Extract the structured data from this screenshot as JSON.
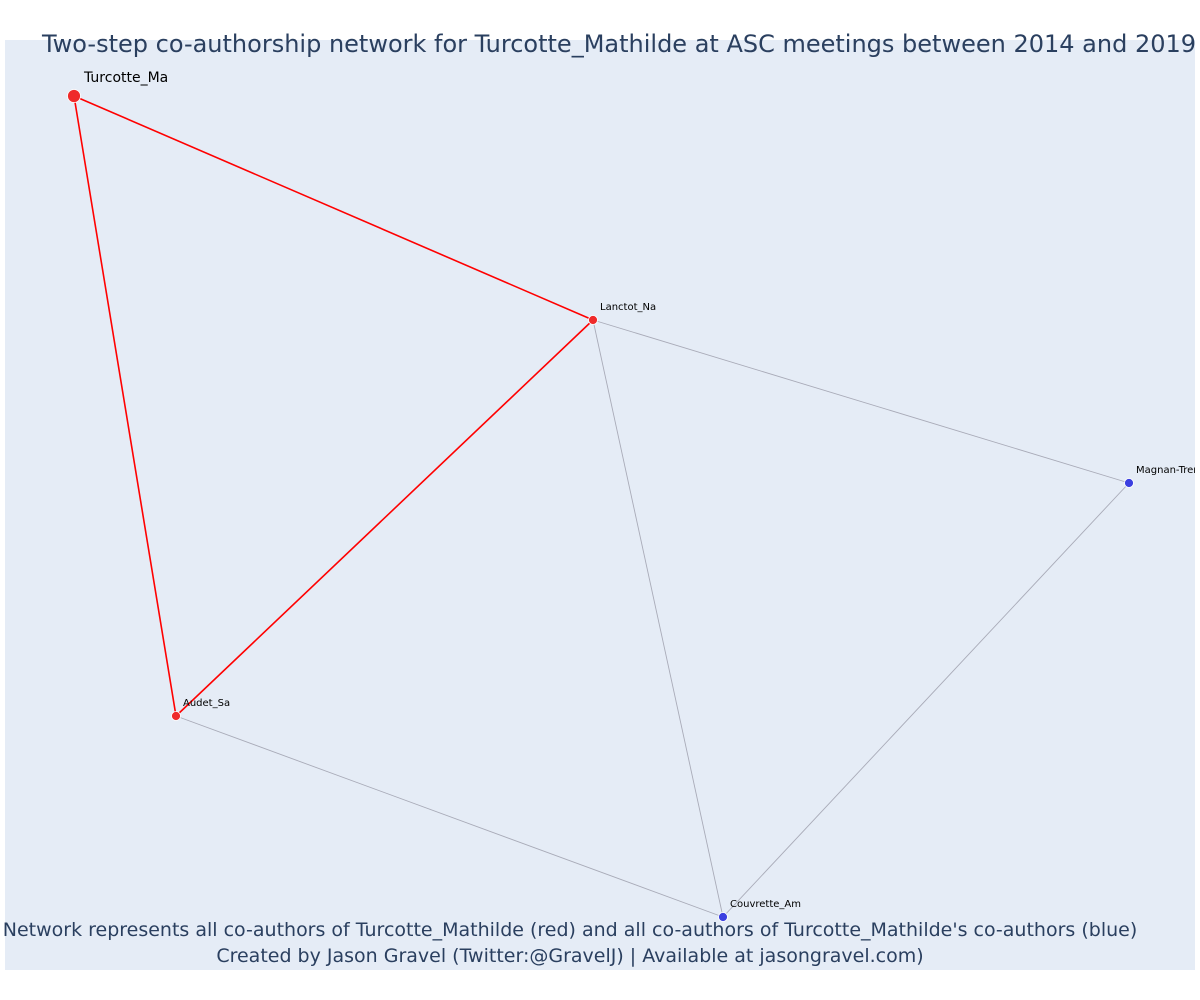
{
  "title": "Two-step co-authorship network for Turcotte_Mathilde at ASC meetings between 2014 and 2019",
  "caption": {
    "line1": "Network represents all co-authors of Turcotte_Mathilde (red) and all co-authors of Turcotte_Mathilde's co-authors (blue)",
    "line2": "Created by Jason Gravel (Twitter:@GravelJ) | Available at jasongravel.com)"
  },
  "colors": {
    "background": "#e5ecf6",
    "first_degree": "#ef2a2a",
    "second_degree": "#3b3fe0",
    "first_degree_edge": "#ff0000",
    "second_degree_edge": "#a9abb8",
    "text": "#2a3f5f"
  },
  "chart_data": {
    "type": "network",
    "nodes": [
      {
        "id": "Turcotte_Ma",
        "label": "Turcotte_Ma",
        "group": "focal"
      },
      {
        "id": "Lanctot_Na",
        "label": "Lanctot_Na",
        "group": "co-author"
      },
      {
        "id": "Audet_Sa",
        "label": "Audet_Sa",
        "group": "co-author"
      },
      {
        "id": "Magnan-Tremblay",
        "label": "Magnan-Trem",
        "group": "second-degree"
      },
      {
        "id": "Couvrette_Am",
        "label": "Couvrette_Am",
        "group": "second-degree"
      }
    ],
    "edges": [
      {
        "source": "Turcotte_Ma",
        "target": "Lanctot_Na",
        "type": "direct"
      },
      {
        "source": "Turcotte_Ma",
        "target": "Audet_Sa",
        "type": "direct"
      },
      {
        "source": "Lanctot_Na",
        "target": "Audet_Sa",
        "type": "direct"
      },
      {
        "source": "Lanctot_Na",
        "target": "Magnan-Tremblay",
        "type": "indirect"
      },
      {
        "source": "Lanctot_Na",
        "target": "Couvrette_Am",
        "type": "indirect"
      },
      {
        "source": "Audet_Sa",
        "target": "Couvrette_Am",
        "type": "indirect"
      },
      {
        "source": "Magnan-Tremblay",
        "target": "Couvrette_Am",
        "type": "indirect"
      }
    ]
  }
}
